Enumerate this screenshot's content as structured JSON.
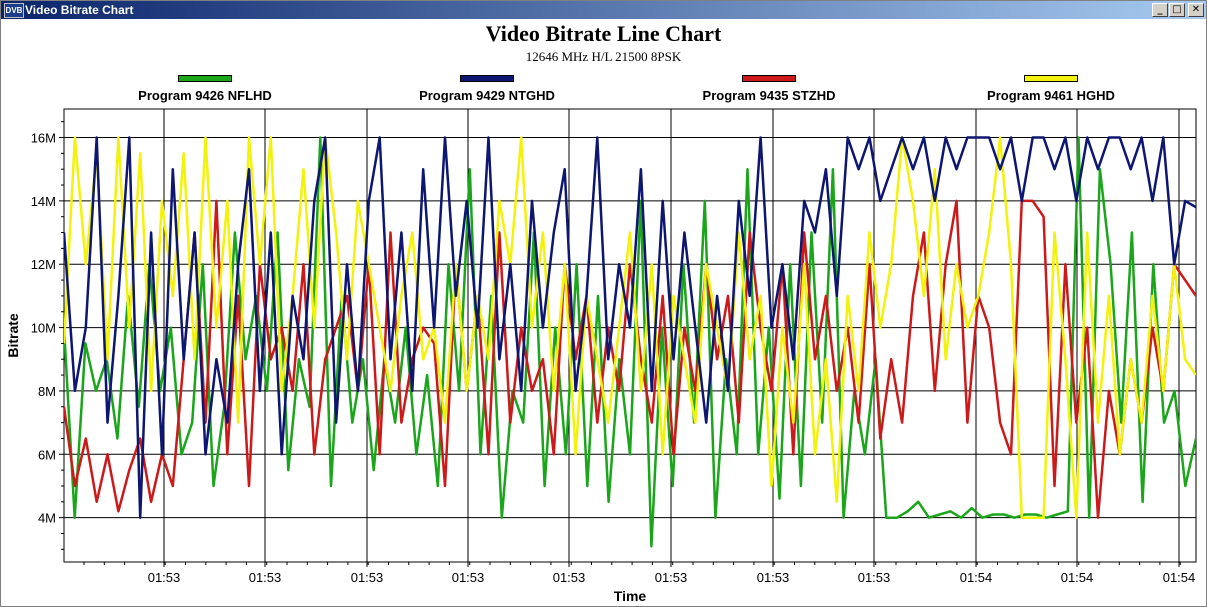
{
  "window": {
    "title": "Video Bitrate Chart",
    "icon_text": "DVB",
    "controls": {
      "minimize": "_",
      "maximize": "□",
      "close": "✕"
    }
  },
  "chart_data": {
    "type": "line",
    "title": "Video Bitrate Line Chart",
    "subtitle": "12646 MHz H/L 21500 8PSK",
    "xlabel": "Time",
    "ylabel": "Bitrate",
    "ylim": [
      2.6,
      16.9
    ],
    "y_ticks": [
      {
        "value": 4,
        "label": "4M"
      },
      {
        "value": 6,
        "label": "6M"
      },
      {
        "value": 8,
        "label": "8M"
      },
      {
        "value": 10,
        "label": "10M"
      },
      {
        "value": 12,
        "label": "12M"
      },
      {
        "value": 14,
        "label": "14M"
      },
      {
        "value": 16,
        "label": "16M"
      }
    ],
    "x_tick_labels": [
      "01:53",
      "01:53",
      "01:53",
      "01:53",
      "01:53",
      "01:53",
      "01:53",
      "01:53",
      "01:54",
      "01:54",
      "01:54",
      "01:54"
    ],
    "grid": true,
    "legend_position": "top",
    "series": [
      {
        "name": "Program 9426 NFLHD",
        "color": "#1aa51a",
        "values": [
          10,
          4,
          9.5,
          8,
          9,
          6.5,
          11,
          7.5,
          12,
          8,
          10,
          6,
          7,
          12,
          5,
          7.5,
          13,
          9,
          11,
          8,
          13,
          5.5,
          9,
          7.5,
          16,
          5,
          11,
          7,
          9,
          5.5,
          9,
          7,
          10,
          6,
          8.5,
          5,
          12,
          8,
          15,
          6,
          11,
          4,
          8,
          7,
          13,
          5,
          10,
          6,
          12,
          5,
          11,
          4.5,
          9,
          6,
          14,
          3.1,
          10,
          5,
          12,
          7,
          14,
          4,
          9,
          6,
          15,
          6,
          10,
          4.6,
          12,
          5,
          13,
          7,
          15,
          4,
          8,
          6,
          9,
          4,
          4,
          4.2,
          4.5,
          4,
          4.1,
          4.2,
          4,
          4.3,
          4,
          4.1,
          4.1,
          4,
          4.1,
          4.1,
          4,
          4.1,
          4.2,
          16,
          4,
          15,
          12,
          7,
          13,
          4.5,
          12,
          7,
          8,
          5,
          6.5
        ]
      },
      {
        "name": "Program 9429 NTGHD",
        "color": "#0d1670",
        "values": [
          13,
          8,
          10,
          16,
          7,
          11,
          16,
          4,
          13,
          6,
          15,
          9,
          13,
          6,
          9,
          7,
          12,
          15,
          8,
          13,
          6,
          11,
          9,
          14,
          16,
          7,
          12,
          8,
          14,
          16,
          9,
          13,
          8,
          15,
          10,
          16,
          11,
          14,
          10,
          16,
          9,
          12,
          8,
          14,
          10,
          13,
          15,
          8,
          11,
          16,
          9,
          12,
          10,
          15,
          8,
          14,
          9,
          13,
          10,
          7,
          11,
          8,
          14,
          11,
          16,
          10,
          12,
          9,
          14,
          13,
          15,
          11,
          16,
          15,
          16,
          14,
          15,
          16,
          15,
          16,
          14,
          16,
          15,
          16,
          16,
          16,
          15,
          16,
          14,
          16,
          16,
          15,
          16,
          14,
          16,
          15,
          16,
          16,
          15,
          16,
          14,
          16,
          12,
          14,
          13.8
        ]
      },
      {
        "name": "Program 9435 STZHD",
        "color": "#cc1a1a",
        "values": [
          7.5,
          5,
          6.5,
          4.5,
          6,
          4.2,
          5.5,
          6.5,
          4.5,
          6,
          5,
          9,
          13,
          7,
          14,
          6,
          11,
          5,
          12,
          9,
          10,
          8,
          12,
          6,
          9,
          10,
          11,
          8,
          12,
          6,
          13,
          7,
          9,
          10,
          9.5,
          5,
          12,
          8,
          11,
          6,
          13,
          7,
          10,
          8,
          9,
          6,
          12,
          9,
          11,
          7,
          10,
          8,
          12,
          9,
          7,
          11,
          6,
          10,
          8,
          12,
          9,
          11,
          7,
          13,
          10,
          8,
          12,
          6,
          13,
          9,
          11,
          8,
          10,
          7,
          12,
          6.5,
          9,
          7,
          11,
          13,
          8,
          12,
          14,
          7,
          11,
          10,
          7,
          6,
          14,
          14,
          13.5,
          5,
          12,
          7,
          10,
          4,
          8,
          6,
          9,
          7,
          10,
          8,
          12,
          11.5,
          11
        ]
      },
      {
        "name": "Program 9461 HGHD",
        "color": "#f2f20a",
        "values": [
          9.5,
          16,
          12,
          15.5,
          9,
          16,
          10,
          15.5,
          8,
          14,
          11,
          15.5,
          9,
          16,
          10,
          14,
          7,
          16,
          12,
          16,
          8,
          11,
          15,
          10,
          16,
          13,
          9,
          14,
          12,
          10,
          8,
          11,
          13,
          9,
          10,
          7,
          12,
          8,
          11,
          9,
          14,
          12,
          16,
          10,
          13,
          8,
          12,
          6,
          11,
          9,
          7,
          10,
          13,
          8,
          12,
          6,
          11,
          9,
          7,
          12,
          10,
          8,
          13,
          9,
          11,
          5,
          10,
          7,
          12,
          6,
          9,
          4.5,
          11,
          8,
          13,
          10,
          12,
          16,
          14,
          11,
          15,
          9,
          12,
          10,
          11,
          13,
          16,
          12,
          4,
          4,
          4,
          13,
          9,
          4,
          13,
          7,
          11,
          6,
          9,
          7,
          11,
          8,
          12,
          9,
          8.5
        ]
      }
    ]
  }
}
